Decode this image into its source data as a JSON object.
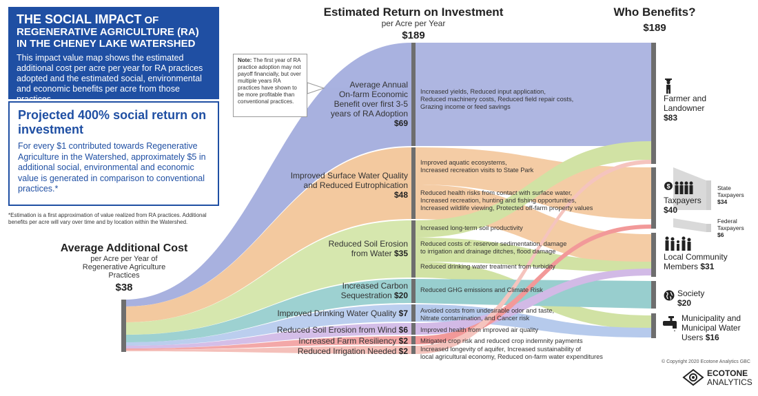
{
  "intro": {
    "title_big": "THE SOCIAL IMPACT",
    "title_rest": " OF REGENERATIVE AGRICULTURE (RA) IN THE CHENEY LAKE WATERSHED",
    "text": "This impact value map shows the estimated additional cost per acre per year for RA practices adopted and the estimated social, environmental and economic benefits per acre from those practices."
  },
  "return_box": {
    "title": "Projected 400% social return on investment",
    "text": "For every $1 contributed towards Regenerative Agriculture in the Watershed, approximately $5 in additional social, environmental and economic value is generated in comparison to conventional practices.*"
  },
  "footnote": "*Estimation is a first approximation of value realized from RA practices. Additional benefits per acre will vary over time and by location within the Watershed.",
  "note": {
    "label": "Note:",
    "text": " The first year of RA practice adoption may not payoff financially, but over multiple years RA practices have shown to be more profitable than conventional practices."
  },
  "cost": {
    "title": "Average Additional Cost",
    "subtitle": "per Acre per Year of Regenerative Agriculture Practices",
    "value": "$38"
  },
  "roi": {
    "title": "Estimated Return on Investment",
    "subtitle": "per Acre per Year",
    "value": "$189"
  },
  "who": {
    "title": "Who Benefits?",
    "value": "$189"
  },
  "categories": [
    {
      "name": "Average Annual On-farm Economic Benefit over first 3-5 years of RA Adoption",
      "value": "$69",
      "line1": "Average Annual",
      "line2": "On-farm Economic",
      "line3": "Benefit over first 3-5",
      "line4": "years of RA Adoption",
      "color": "#8f9bd6"
    },
    {
      "name": "Improved Surface Water Quality and Reduced Eutrophication",
      "value": "$48",
      "line1": "Improved Surface Water Quality",
      "line2": "and Reduced Eutrophication",
      "color": "#f2c08f"
    },
    {
      "name": "Reduced Soil Erosion from Water",
      "value": "$35",
      "line1": "Reduced Soil Erosion",
      "line2": "from Water",
      "color": "#c6dc8e"
    },
    {
      "name": "Increased Carbon Sequestration",
      "value": "$20",
      "line1": "Increased Carbon",
      "line2": "Sequestration",
      "color": "#7fc2c2"
    },
    {
      "name": "Improved Drinking Water Quality",
      "value": "$7",
      "color": "#a4bde8"
    },
    {
      "name": "Reduced Soil Erosion from Wind",
      "value": "$6",
      "color": "#c7a9e0"
    },
    {
      "name": "Increased Farm Resiliency",
      "value": "$2",
      "color": "#f08080"
    },
    {
      "name": "Reduced Irrigation Needed",
      "value": "$2",
      "color": "#f0a8a0"
    }
  ],
  "benefits": [
    "Increased yields, Reduced input application,",
    "Reduced machinery costs, Reduced field repair costs,",
    "Grazing income or feed savings",
    "Improved aquatic ecosystems,",
    "Increased recreation visits to State Park",
    "Reduced health risks from contact with surface water,",
    "Increased recreation, hunting and fishing opportunities,",
    "Increased wildlife viewing, Protected off-farm property values",
    "Increased long-term soil productivity",
    "Reduced costs of: reservoir sedimentation, damage",
    "to irrigation and drainage ditches, flood damage",
    "Reduced drinking water treatment from turbidity",
    "Reduced GHG emissions and Climate Risk",
    "Avoided costs from undesirable odor and taste,",
    "Nitrate contamination, and Cancer risk",
    "Improved health from improved air quality",
    "Mitigated crop risk and reduced crop indemnity payments",
    "Increased longevity of aquifer, Increased sustainability of",
    "local agricultural economy, Reduced on-farm water expenditures"
  ],
  "beneficiaries": [
    {
      "line1": "Farmer and",
      "line2": "Landowner",
      "value": "$83",
      "icon": "farmer-icon"
    },
    {
      "line1": "Taxpayers",
      "value": "$40",
      "icon": "taxpayers-icon"
    },
    {
      "line1": "Local Community",
      "line2": "Members",
      "value": "$31",
      "icon": "community-icon"
    },
    {
      "line1": "Society",
      "value": "$20",
      "icon": "globe-icon"
    },
    {
      "line1": "Municipality and",
      "line2": "Municipal Water",
      "line3": "Users",
      "value": "$16",
      "icon": "faucet-icon"
    }
  ],
  "taxpayer_split": [
    {
      "line1": "State",
      "line2": "Taxpayers",
      "value": "$34"
    },
    {
      "line1": "Federal",
      "line2": "Taxpayers",
      "value": "$6"
    }
  ],
  "copyright": "© Copyright 2020 Ecotone Analytics GBC",
  "logo": {
    "line1": "ECOTONE",
    "line2": "ANALYTICS"
  }
}
